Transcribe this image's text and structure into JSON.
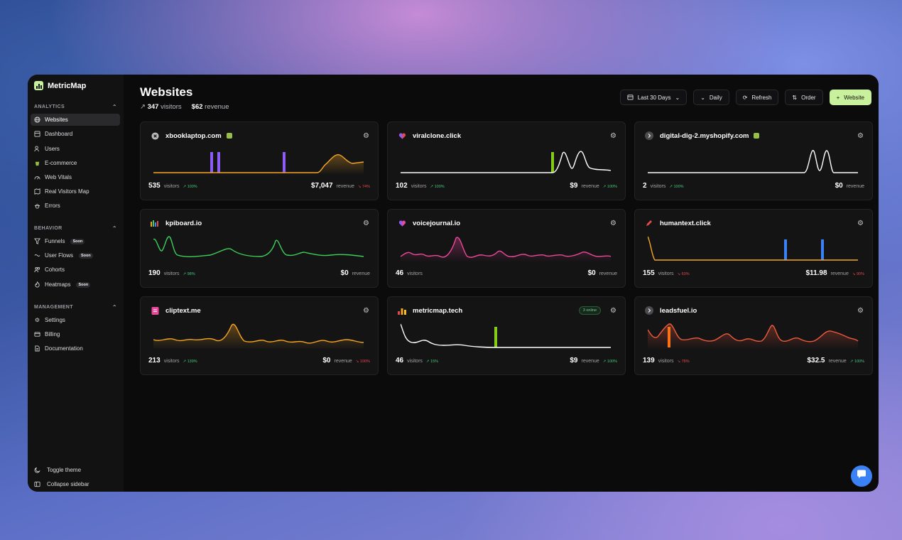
{
  "brand": {
    "name": "MetricMap"
  },
  "sections": {
    "analytics": "ANALYTICS",
    "behavior": "BEHAVIOR",
    "management": "MANAGEMENT"
  },
  "nav": {
    "websites": "Websites",
    "dashboard": "Dashboard",
    "users": "Users",
    "ecommerce": "E-commerce",
    "web_vitals": "Web Vitals",
    "real_visitors_map": "Real Visitors Map",
    "errors": "Errors",
    "funnels": "Funnels",
    "user_flows": "User Flows",
    "cohorts": "Cohorts",
    "heatmaps": "Heatmaps",
    "settings": "Settings",
    "billing": "Billing",
    "documentation": "Documentation",
    "soon": "Soon",
    "toggle_theme": "Toggle theme",
    "collapse_sidebar": "Collapse sidebar"
  },
  "page": {
    "title": "Websites",
    "visitors_total": "347",
    "visitors_label": "visitors",
    "revenue_total": "$62",
    "revenue_label": "revenue"
  },
  "toolbar": {
    "range": "Last 30 Days",
    "interval": "Daily",
    "refresh": "Refresh",
    "order": "Order",
    "add_website": "Website"
  },
  "labels": {
    "visitors": "visitors",
    "revenue": "revenue"
  },
  "colors": {
    "accent": "#c9f09c",
    "up": "#46c77a",
    "down": "#e5484d",
    "chat": "#3b82f6"
  },
  "sites": [
    {
      "name": "xbooklaptop.com",
      "visitors": "535",
      "visitors_change": "100%",
      "visitors_dir": "up",
      "revenue": "$7,047",
      "revenue_change": "74%",
      "revenue_dir": "down",
      "color": "#f5a524",
      "shop": true,
      "icon": "x-circle-icon",
      "online": ""
    },
    {
      "name": "viralclone.click",
      "visitors": "102",
      "visitors_change": "100%",
      "visitors_dir": "up",
      "revenue": "$9",
      "revenue_change": "100%",
      "revenue_dir": "up",
      "color": "#ffffff",
      "shop": false,
      "icon": "heart-icon",
      "online": ""
    },
    {
      "name": "digital-dig-2.myshopify.com",
      "visitors": "2",
      "visitors_change": "100%",
      "visitors_dir": "up",
      "revenue": "$0",
      "revenue_change": "",
      "revenue_dir": "",
      "color": "#ffffff",
      "shop": true,
      "icon": "arrow-circle-icon",
      "online": ""
    },
    {
      "name": "kpiboard.io",
      "visitors": "190",
      "visitors_change": "98%",
      "visitors_dir": "up",
      "revenue": "$0",
      "revenue_change": "",
      "revenue_dir": "",
      "color": "#3ccf5a",
      "shop": false,
      "icon": "bars-icon",
      "online": ""
    },
    {
      "name": "voicejournal.io",
      "visitors": "46",
      "visitors_change": "",
      "visitors_dir": "",
      "revenue": "$0",
      "revenue_change": "",
      "revenue_dir": "",
      "color": "#ec4899",
      "shop": false,
      "icon": "heart-icon",
      "online": ""
    },
    {
      "name": "humantext.click",
      "visitors": "155",
      "visitors_change": "63%",
      "visitors_dir": "down",
      "revenue": "$11.98",
      "revenue_change": "90%",
      "revenue_dir": "down",
      "color": "#f5a524",
      "shop": false,
      "icon": "pen-icon",
      "online": ""
    },
    {
      "name": "cliptext.me",
      "visitors": "213",
      "visitors_change": "139%",
      "visitors_dir": "up",
      "revenue": "$0",
      "revenue_change": "100%",
      "revenue_dir": "down",
      "color": "#f5a524",
      "shop": false,
      "icon": "clipboard-icon",
      "online": ""
    },
    {
      "name": "metricmap.tech",
      "visitors": "46",
      "visitors_change": "15%",
      "visitors_dir": "up",
      "revenue": "$9",
      "revenue_change": "100%",
      "revenue_dir": "up",
      "color": "#ffffff",
      "shop": false,
      "icon": "chart-icon",
      "online": "3 online"
    },
    {
      "name": "leadsfuel.io",
      "visitors": "139",
      "visitors_change": "78%",
      "visitors_dir": "down",
      "revenue": "$32.5",
      "revenue_change": "100%",
      "revenue_dir": "up",
      "color": "#ef5a3c",
      "shop": false,
      "icon": "arrow-circle-icon",
      "online": ""
    }
  ]
}
